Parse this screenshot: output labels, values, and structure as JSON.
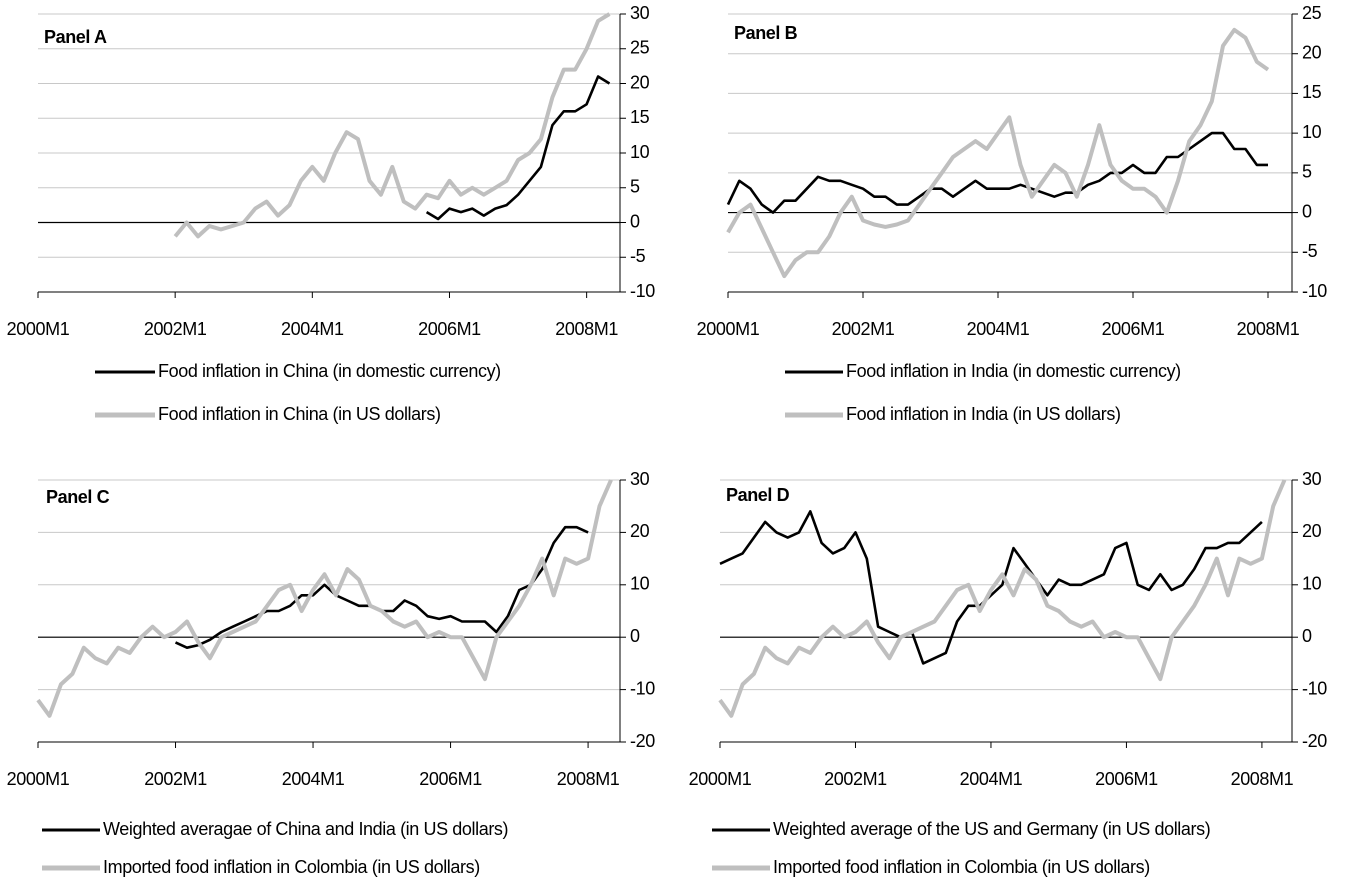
{
  "chart_data": [
    {
      "type": "line",
      "title": "Panel A",
      "x": [
        "2000M1",
        "2000M3",
        "2000M5",
        "2000M7",
        "2000M9",
        "2000M11",
        "2001M1",
        "2001M3",
        "2001M5",
        "2001M7",
        "2001M9",
        "2001M11",
        "2002M1",
        "2002M3",
        "2002M5",
        "2002M7",
        "2002M9",
        "2002M11",
        "2003M1",
        "2003M3",
        "2003M5",
        "2003M7",
        "2003M9",
        "2003M11",
        "2004M1",
        "2004M3",
        "2004M5",
        "2004M7",
        "2004M9",
        "2004M11",
        "2005M1",
        "2005M3",
        "2005M5",
        "2005M7",
        "2005M9",
        "2005M11",
        "2006M1",
        "2006M3",
        "2006M5",
        "2006M7",
        "2006M9",
        "2006M11",
        "2007M1",
        "2007M3",
        "2007M5",
        "2007M7",
        "2007M9",
        "2007M11",
        "2008M1",
        "2008M3",
        "2008M5"
      ],
      "xticks": [
        "2000M1",
        "2002M1",
        "2004M1",
        "2006M1",
        "2008M1"
      ],
      "ylim": [
        -10,
        30
      ],
      "yticks": [
        -10,
        -5,
        0,
        5,
        10,
        15,
        20,
        25,
        30
      ],
      "grid": true,
      "series": [
        {
          "name": "Food inflation in China (in domestic currency)",
          "color": "#000000",
          "values": [
            null,
            null,
            null,
            null,
            null,
            null,
            null,
            null,
            null,
            null,
            null,
            null,
            null,
            null,
            null,
            null,
            null,
            null,
            null,
            null,
            null,
            null,
            null,
            null,
            null,
            null,
            null,
            null,
            null,
            null,
            null,
            null,
            null,
            null,
            1.5,
            0.5,
            2,
            1.5,
            2,
            1,
            2,
            2.5,
            4,
            6,
            8,
            14,
            16,
            16,
            17,
            21,
            20
          ]
        },
        {
          "name": "Food inflation in China (in US dollars)",
          "color": "#bfbfbf",
          "values": [
            null,
            null,
            null,
            null,
            null,
            null,
            null,
            null,
            null,
            null,
            null,
            null,
            -2,
            0,
            -2,
            -0.5,
            -1,
            -0.5,
            0,
            2,
            3,
            1,
            2.5,
            6,
            8,
            6,
            10,
            13,
            12,
            6,
            4,
            8,
            3,
            2,
            4,
            3.5,
            6,
            4,
            5,
            4,
            5,
            6,
            9,
            10,
            12,
            18,
            22,
            22,
            25,
            29,
            30
          ]
        }
      ]
    },
    {
      "type": "line",
      "title": "Panel B",
      "x": [
        "2000M1",
        "2000M3",
        "2000M5",
        "2000M7",
        "2000M9",
        "2000M11",
        "2001M1",
        "2001M3",
        "2001M5",
        "2001M7",
        "2001M9",
        "2001M11",
        "2002M1",
        "2002M3",
        "2002M5",
        "2002M7",
        "2002M9",
        "2002M11",
        "2003M1",
        "2003M3",
        "2003M5",
        "2003M7",
        "2003M9",
        "2003M11",
        "2004M1",
        "2004M3",
        "2004M5",
        "2004M7",
        "2004M9",
        "2004M11",
        "2005M1",
        "2005M3",
        "2005M5",
        "2005M7",
        "2005M9",
        "2005M11",
        "2006M1",
        "2006M3",
        "2006M5",
        "2006M7",
        "2006M9",
        "2006M11",
        "2007M1",
        "2007M3",
        "2007M5",
        "2007M7",
        "2007M9",
        "2007M11",
        "2008M1",
        "2008M3",
        "2008M5"
      ],
      "xticks": [
        "2000M1",
        "2002M1",
        "2004M1",
        "2006M1",
        "2008M1"
      ],
      "ylim": [
        -10,
        25
      ],
      "yticks": [
        -10,
        -5,
        0,
        5,
        10,
        15,
        20,
        25
      ],
      "grid": true,
      "series": [
        {
          "name": "Food inflation in India (in domestic currency)",
          "color": "#000000",
          "values": [
            1,
            4,
            3,
            1,
            0,
            1.5,
            1.5,
            3,
            4.5,
            4,
            4,
            3.5,
            3,
            2,
            2,
            1,
            1,
            2,
            3,
            3,
            2,
            3,
            4,
            3,
            3,
            3,
            3.5,
            3,
            2.5,
            2,
            2.5,
            2.5,
            3.5,
            4,
            5,
            5,
            6,
            5,
            5,
            7,
            7,
            8,
            9,
            10,
            10,
            8,
            8,
            6,
            6,
            null,
            null
          ]
        },
        {
          "name": "Food inflation in India (in US dollars)",
          "color": "#bfbfbf",
          "values": [
            -2.5,
            0,
            1,
            -2,
            -5,
            -8,
            -6,
            -5,
            -5,
            -3,
            0,
            2,
            -1,
            -1.5,
            -1.8,
            -1.5,
            -1,
            1,
            3,
            5,
            7,
            8,
            9,
            8,
            10,
            12,
            6,
            2,
            4,
            6,
            5,
            2,
            6,
            11,
            6,
            4,
            3,
            3,
            2,
            0,
            4,
            9,
            11,
            14,
            21,
            23,
            22,
            19,
            18,
            null,
            null
          ]
        }
      ]
    },
    {
      "type": "line",
      "title": "Panel C",
      "x": [
        "2000M1",
        "2000M3",
        "2000M5",
        "2000M7",
        "2000M9",
        "2000M11",
        "2001M1",
        "2001M3",
        "2001M5",
        "2001M7",
        "2001M9",
        "2001M11",
        "2002M1",
        "2002M3",
        "2002M5",
        "2002M7",
        "2002M9",
        "2002M11",
        "2003M1",
        "2003M3",
        "2003M5",
        "2003M7",
        "2003M9",
        "2003M11",
        "2004M1",
        "2004M3",
        "2004M5",
        "2004M7",
        "2004M9",
        "2004M11",
        "2005M1",
        "2005M3",
        "2005M5",
        "2005M7",
        "2005M9",
        "2005M11",
        "2006M1",
        "2006M3",
        "2006M5",
        "2006M7",
        "2006M9",
        "2006M11",
        "2007M1",
        "2007M3",
        "2007M5",
        "2007M7",
        "2007M9",
        "2007M11",
        "2008M1",
        "2008M3",
        "2008M5"
      ],
      "xticks": [
        "2000M1",
        "2002M1",
        "2004M1",
        "2006M1",
        "2008M1"
      ],
      "ylim": [
        -20,
        30
      ],
      "yticks": [
        -20,
        -10,
        0,
        10,
        20,
        30
      ],
      "grid": true,
      "series": [
        {
          "name": "Weighted averagae of China and India (in US dollars)",
          "color": "#000000",
          "values": [
            null,
            null,
            null,
            null,
            null,
            null,
            null,
            null,
            null,
            null,
            null,
            null,
            -1,
            -2,
            -1.5,
            -0.5,
            1,
            2,
            3,
            4,
            5,
            5,
            6,
            8,
            8,
            10,
            8,
            7,
            6,
            6,
            5,
            5,
            7,
            6,
            4,
            3.5,
            4,
            3,
            3,
            3,
            1,
            4,
            9,
            10,
            13,
            18,
            21,
            21,
            20,
            null,
            null
          ]
        },
        {
          "name": "Imported food inflation in Colombia (in US dollars)",
          "color": "#bfbfbf",
          "values": [
            -12,
            -15,
            -9,
            -7,
            -2,
            -4,
            -5,
            -2,
            -3,
            0,
            2,
            0,
            1,
            3,
            -1,
            -4,
            0,
            1,
            2,
            3,
            6,
            9,
            10,
            5,
            9,
            12,
            8,
            13,
            11,
            6,
            5,
            3,
            2,
            3,
            0,
            1,
            0,
            0,
            -4,
            -8,
            0,
            3,
            6,
            10,
            15,
            8,
            15,
            14,
            15,
            25,
            30
          ]
        }
      ]
    },
    {
      "type": "line",
      "title": "Panel D",
      "x": [
        "2000M1",
        "2000M3",
        "2000M5",
        "2000M7",
        "2000M9",
        "2000M11",
        "2001M1",
        "2001M3",
        "2001M5",
        "2001M7",
        "2001M9",
        "2001M11",
        "2002M1",
        "2002M3",
        "2002M5",
        "2002M7",
        "2002M9",
        "2002M11",
        "2003M1",
        "2003M3",
        "2003M5",
        "2003M7",
        "2003M9",
        "2003M11",
        "2004M1",
        "2004M3",
        "2004M5",
        "2004M7",
        "2004M9",
        "2004M11",
        "2005M1",
        "2005M3",
        "2005M5",
        "2005M7",
        "2005M9",
        "2005M11",
        "2006M1",
        "2006M3",
        "2006M5",
        "2006M7",
        "2006M9",
        "2006M11",
        "2007M1",
        "2007M3",
        "2007M5",
        "2007M7",
        "2007M9",
        "2007M11",
        "2008M1",
        "2008M3",
        "2008M5"
      ],
      "xticks": [
        "2000M1",
        "2002M1",
        "2004M1",
        "2006M1",
        "2008M1"
      ],
      "ylim": [
        -20,
        30
      ],
      "yticks": [
        -20,
        -10,
        0,
        10,
        20,
        30
      ],
      "grid": true,
      "series": [
        {
          "name": "Weighted average of the US and Germany (in US dollars)",
          "color": "#000000",
          "values": [
            14,
            15,
            16,
            19,
            22,
            20,
            19,
            20,
            24,
            18,
            16,
            17,
            20,
            15,
            2,
            1,
            0,
            1,
            -5,
            -4,
            -3,
            3,
            6,
            6,
            8,
            10,
            17,
            14,
            11,
            8,
            11,
            10,
            10,
            11,
            12,
            17,
            18,
            10,
            9,
            12,
            9,
            10,
            13,
            17,
            17,
            18,
            18,
            20,
            22,
            null,
            null
          ]
        },
        {
          "name": "Imported food inflation in Colombia (in US dollars)",
          "color": "#bfbfbf",
          "values": [
            -12,
            -15,
            -9,
            -7,
            -2,
            -4,
            -5,
            -2,
            -3,
            0,
            2,
            0,
            1,
            3,
            -1,
            -4,
            0,
            1,
            2,
            3,
            6,
            9,
            10,
            5,
            9,
            12,
            8,
            13,
            11,
            6,
            5,
            3,
            2,
            3,
            0,
            1,
            0,
            0,
            -4,
            -8,
            0,
            3,
            6,
            10,
            15,
            8,
            15,
            14,
            15,
            25,
            30
          ]
        }
      ]
    }
  ]
}
